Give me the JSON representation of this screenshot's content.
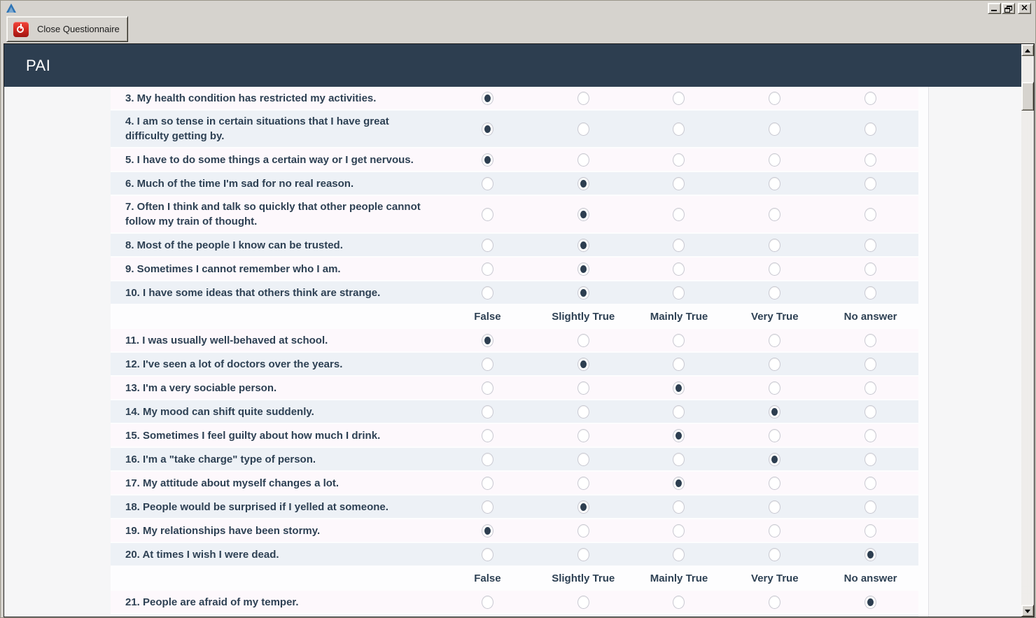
{
  "window": {
    "title": "",
    "app_icon": "triangle-logo",
    "controls": [
      "minimize",
      "restore",
      "close"
    ]
  },
  "toolbar": {
    "close_button_label": "Close Questionnaire",
    "close_button_icon": "power-icon"
  },
  "header": {
    "title": "PAI"
  },
  "questionnaire": {
    "option_labels": [
      "False",
      "Slightly True",
      "Mainly True",
      "Very True",
      "No answer"
    ],
    "sections": [
      {
        "show_header": false,
        "questions": [
          {
            "num": 3,
            "text": "My health condition has restricted my activities.",
            "selected": 0
          },
          {
            "num": 4,
            "text": "I am so tense in certain situations that I have great difficulty getting by.",
            "selected": 0
          },
          {
            "num": 5,
            "text": "I have to do some things a certain way or I get nervous.",
            "selected": 0
          },
          {
            "num": 6,
            "text": "Much of the time I'm sad for no real reason.",
            "selected": 1
          },
          {
            "num": 7,
            "text": "Often I think and talk so quickly that other people cannot follow my train of thought.",
            "selected": 1
          },
          {
            "num": 8,
            "text": "Most of the people I know can be trusted.",
            "selected": 1
          },
          {
            "num": 9,
            "text": "Sometimes I cannot remember who I am.",
            "selected": 1
          },
          {
            "num": 10,
            "text": "I have some ideas that others think are strange.",
            "selected": 1
          }
        ]
      },
      {
        "show_header": true,
        "questions": [
          {
            "num": 11,
            "text": "I was usually well-behaved at school.",
            "selected": 0
          },
          {
            "num": 12,
            "text": "I've seen a lot of doctors over the years.",
            "selected": 1
          },
          {
            "num": 13,
            "text": "I'm a very sociable person.",
            "selected": 2
          },
          {
            "num": 14,
            "text": "My mood can shift quite suddenly.",
            "selected": 3
          },
          {
            "num": 15,
            "text": "Sometimes I feel guilty about how much I drink.",
            "selected": 2
          },
          {
            "num": 16,
            "text": "I'm a \"take charge\" type of person.",
            "selected": 3
          },
          {
            "num": 17,
            "text": "My attitude about myself changes a lot.",
            "selected": 2
          },
          {
            "num": 18,
            "text": "People would be surprised if I yelled at someone.",
            "selected": 1
          },
          {
            "num": 19,
            "text": "My relationships have been stormy.",
            "selected": 0
          },
          {
            "num": 20,
            "text": "At times I wish I were dead.",
            "selected": 4
          }
        ]
      },
      {
        "show_header": true,
        "questions": [
          {
            "num": 21,
            "text": "People are afraid of my temper.",
            "selected": 4
          }
        ]
      }
    ]
  },
  "colors": {
    "header_bg": "#2d3e50",
    "row_odd": "#fdf8fc",
    "row_even": "#edf1f6",
    "question_text": "#2e4154",
    "chrome_gray": "#d6d3ce",
    "power_icon_red": "#d62b22"
  }
}
